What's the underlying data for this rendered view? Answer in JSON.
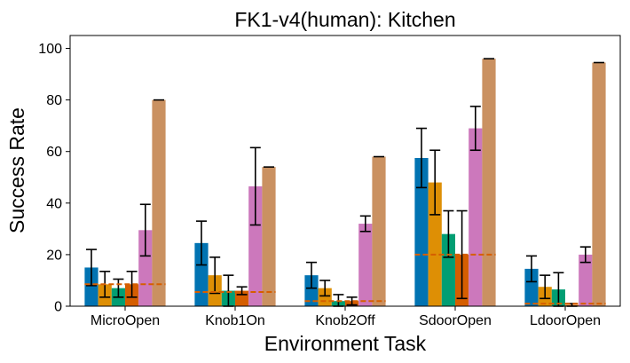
{
  "chart_data": {
    "type": "bar",
    "title": "FK1-v4(human): Kitchen",
    "xlabel": "Environment Task",
    "ylabel": "Success Rate",
    "ylim": [
      0,
      105
    ],
    "yticks": [
      0,
      20,
      40,
      60,
      80,
      100
    ],
    "grid": false,
    "categories": [
      "MicroOpen",
      "Knob1On",
      "Knob2Off",
      "SdoorOpen",
      "LdoorOpen"
    ],
    "series": [
      {
        "color": "#0173b2",
        "values": [
          15,
          24.5,
          12,
          57.5,
          14.5
        ],
        "errors": [
          7,
          8.5,
          5,
          11.5,
          5
        ]
      },
      {
        "color": "#de8f05",
        "values": [
          8.5,
          12,
          7,
          48,
          7.5
        ],
        "errors": [
          5,
          7,
          3,
          12.5,
          4.5
        ]
      },
      {
        "color": "#029e73",
        "values": [
          7,
          6,
          2,
          28,
          6.5
        ],
        "errors": [
          3.5,
          6,
          2.5,
          9,
          6.5
        ]
      },
      {
        "color": "#d55e00",
        "values": [
          8.5,
          6,
          2,
          20,
          0.5
        ],
        "errors": [
          5,
          1.5,
          1.5,
          17,
          0.5
        ]
      },
      {
        "color": "#cc78bc",
        "values": [
          29.5,
          46.5,
          32,
          69,
          20
        ],
        "errors": [
          10,
          15,
          3,
          8.5,
          3
        ]
      },
      {
        "color": "#ca9161",
        "values": [
          80,
          54,
          58,
          96,
          94.5
        ],
        "errors": [
          0,
          0,
          0,
          0,
          0
        ]
      }
    ],
    "baseline": {
      "color": "#d55e00",
      "style": "dashed",
      "values": [
        8.5,
        5.5,
        2,
        20,
        1
      ]
    }
  }
}
